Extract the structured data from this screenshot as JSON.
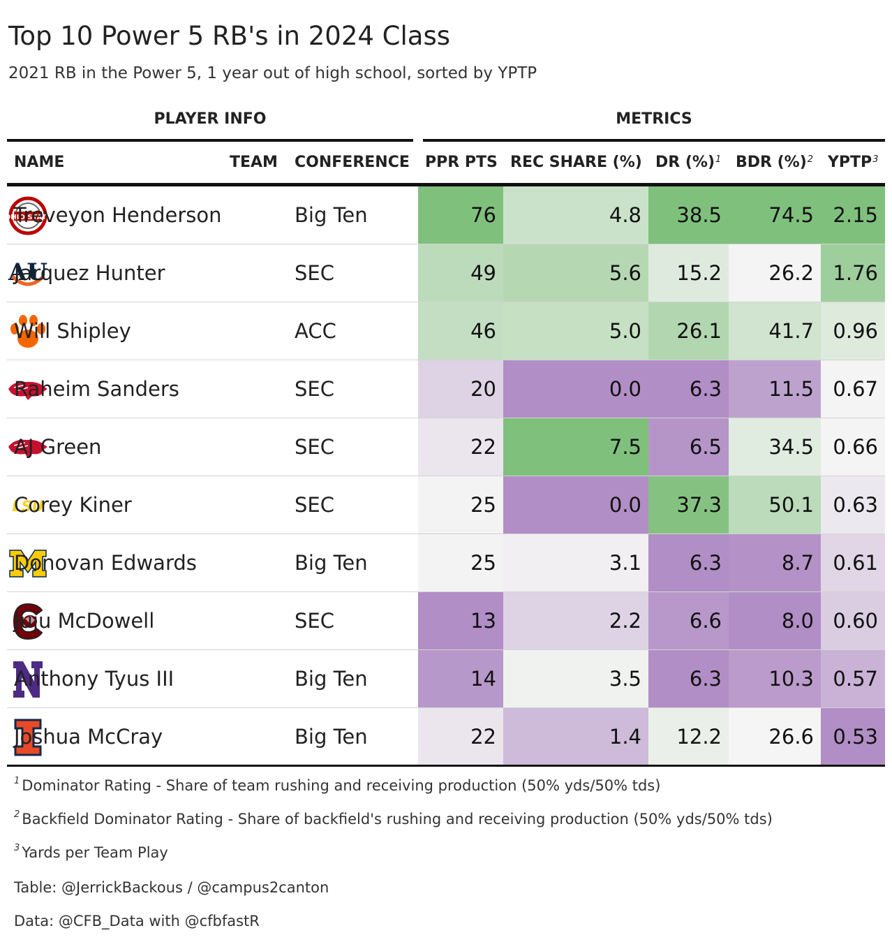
{
  "header": {
    "title": "Top 10 Power 5 RB's in 2024 Class",
    "subtitle": "2021 RB in the Power 5, 1 year out of high school, sorted by YPTP"
  },
  "spanners": {
    "player_info": "PLAYER INFO",
    "metrics": "METRICS"
  },
  "columns": {
    "name": "NAME",
    "team": "TEAM",
    "conference": "CONFERENCE",
    "ppr": "PPR PTS",
    "rec": "REC SHARE (%)",
    "dr": "DR (%)",
    "dr_mark": "1",
    "bdr": "BDR (%)",
    "bdr_mark": "2",
    "yptp": "YPTP",
    "yptp_mark": "3"
  },
  "chart_data": {
    "type": "table",
    "title": "Top 10 Power 5 RB's in 2024 Class",
    "subtitle": "2021 RB in the Power 5, 1 year out of high school, sorted by YPTP",
    "colors": {
      "high": "#80c07d",
      "mid": "#f5f5f5",
      "low": "#b18ec5"
    },
    "rows": [
      {
        "name": "Treveyon Henderson",
        "team_logo": "ohio-state-logo",
        "conference": "Big Ten",
        "ppr": "76",
        "rec": "4.8",
        "dr": "38.5",
        "bdr": "74.5",
        "yptp": "2.15"
      },
      {
        "name": "Jarquez Hunter",
        "team_logo": "auburn-logo",
        "conference": "SEC",
        "ppr": "49",
        "rec": "5.6",
        "dr": "15.2",
        "bdr": "26.2",
        "yptp": "1.76"
      },
      {
        "name": "Will Shipley",
        "team_logo": "clemson-logo",
        "conference": "ACC",
        "ppr": "46",
        "rec": "5.0",
        "dr": "26.1",
        "bdr": "41.7",
        "yptp": "0.96"
      },
      {
        "name": "Raheim Sanders",
        "team_logo": "arkansas-logo",
        "conference": "SEC",
        "ppr": "20",
        "rec": "0.0",
        "dr": "6.3",
        "bdr": "11.5",
        "yptp": "0.67"
      },
      {
        "name": "AJ Green",
        "team_logo": "arkansas-logo",
        "conference": "SEC",
        "ppr": "22",
        "rec": "7.5",
        "dr": "6.5",
        "bdr": "34.5",
        "yptp": "0.66"
      },
      {
        "name": "Corey Kiner",
        "team_logo": "lsu-logo",
        "conference": "SEC",
        "ppr": "25",
        "rec": "0.0",
        "dr": "37.3",
        "bdr": "50.1",
        "yptp": "0.63"
      },
      {
        "name": "Donovan Edwards",
        "team_logo": "michigan-logo",
        "conference": "Big Ten",
        "ppr": "25",
        "rec": "3.1",
        "dr": "6.3",
        "bdr": "8.7",
        "yptp": "0.61"
      },
      {
        "name": "Juju McDowell",
        "team_logo": "south-carolina-logo",
        "conference": "SEC",
        "ppr": "13",
        "rec": "2.2",
        "dr": "6.6",
        "bdr": "8.0",
        "yptp": "0.60"
      },
      {
        "name": "Anthony Tyus III",
        "team_logo": "northwestern-logo",
        "conference": "Big Ten",
        "ppr": "14",
        "rec": "3.5",
        "dr": "6.3",
        "bdr": "10.3",
        "yptp": "0.57"
      },
      {
        "name": "Joshua McCray",
        "team_logo": "illinois-logo",
        "conference": "Big Ten",
        "ppr": "22",
        "rec": "1.4",
        "dr": "12.2",
        "bdr": "26.6",
        "yptp": "0.53"
      }
    ]
  },
  "footnotes": [
    {
      "mark": "1",
      "text": "Dominator Rating - Share of team rushing and receiving production (50% yds/50% tds)"
    },
    {
      "mark": "2",
      "text": "Backfield Dominator Rating - Share of backfield's rushing and receiving production (50% yds/50% tds)"
    },
    {
      "mark": "3",
      "text": "Yards per Team Play"
    }
  ],
  "source": {
    "table": "Table: @JerrickBackous / @campus2canton",
    "data": "Data: @CFB_Data with @cfbfastR"
  }
}
